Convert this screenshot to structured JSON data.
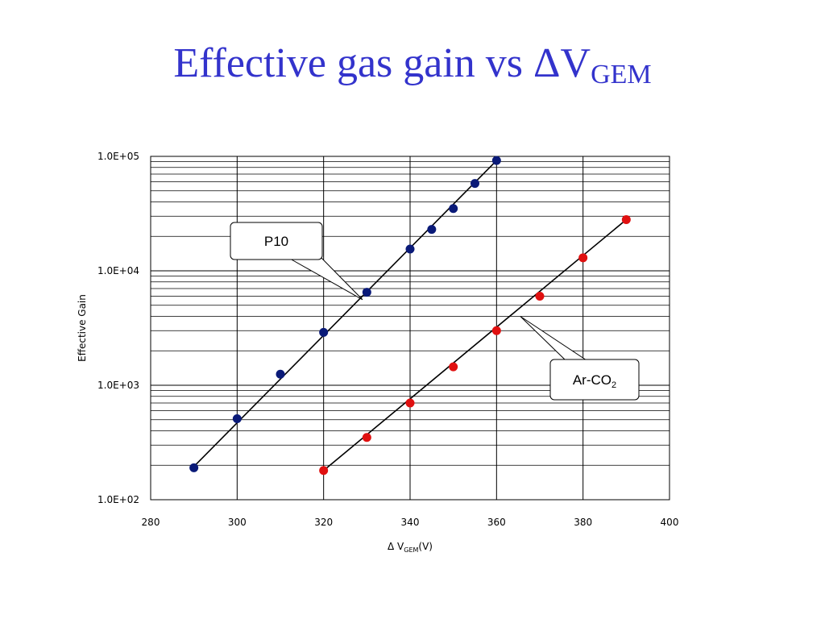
{
  "slide": {
    "title_main": "Effective gas gain vs ",
    "title_delta": "Δ",
    "title_v": "V",
    "title_sub": "GEM"
  },
  "chart_data": {
    "type": "scatter",
    "title": "",
    "xlabel_prefix": "Δ V",
    "xlabel_sub": "GEM",
    "xlabel_suffix": "(V)",
    "ylabel": "Effective Gain",
    "xlim": [
      280,
      400
    ],
    "ylim": [
      100,
      100000
    ],
    "yscale": "log",
    "grid": true,
    "x_ticks": [
      280,
      300,
      320,
      340,
      360,
      380,
      400
    ],
    "x_tick_labels": [
      "280",
      "300",
      "320",
      "340",
      "360",
      "380",
      "400"
    ],
    "y_ticks": [
      100,
      1000,
      10000,
      100000
    ],
    "y_tick_labels": [
      "1.0E+02",
      "1.0E+03",
      "1.0E+04",
      "1.0E+05"
    ],
    "series": [
      {
        "name": "P10",
        "color": "#0a1a78",
        "x": [
          290,
          300,
          310,
          320,
          330,
          340,
          345,
          350,
          355,
          360
        ],
        "y": [
          190,
          510,
          1250,
          2900,
          6500,
          15500,
          23000,
          35000,
          58000,
          92000
        ],
        "fit": [
          [
            290,
            195
          ],
          [
            360,
            92000
          ]
        ]
      },
      {
        "name": "Ar-CO",
        "name_sub": "2",
        "color": "#e01010",
        "x": [
          320,
          330,
          340,
          350,
          360,
          370,
          380,
          390
        ],
        "y": [
          180,
          350,
          700,
          1450,
          3000,
          6000,
          13000,
          28000
        ],
        "fit": [
          [
            320,
            180
          ],
          [
            390,
            28000
          ]
        ]
      }
    ],
    "annotations": [
      {
        "text": "P10",
        "series": 0,
        "box": "left-above"
      },
      {
        "text": "Ar-CO",
        "sub": "2",
        "series": 1,
        "box": "right-below"
      }
    ]
  }
}
